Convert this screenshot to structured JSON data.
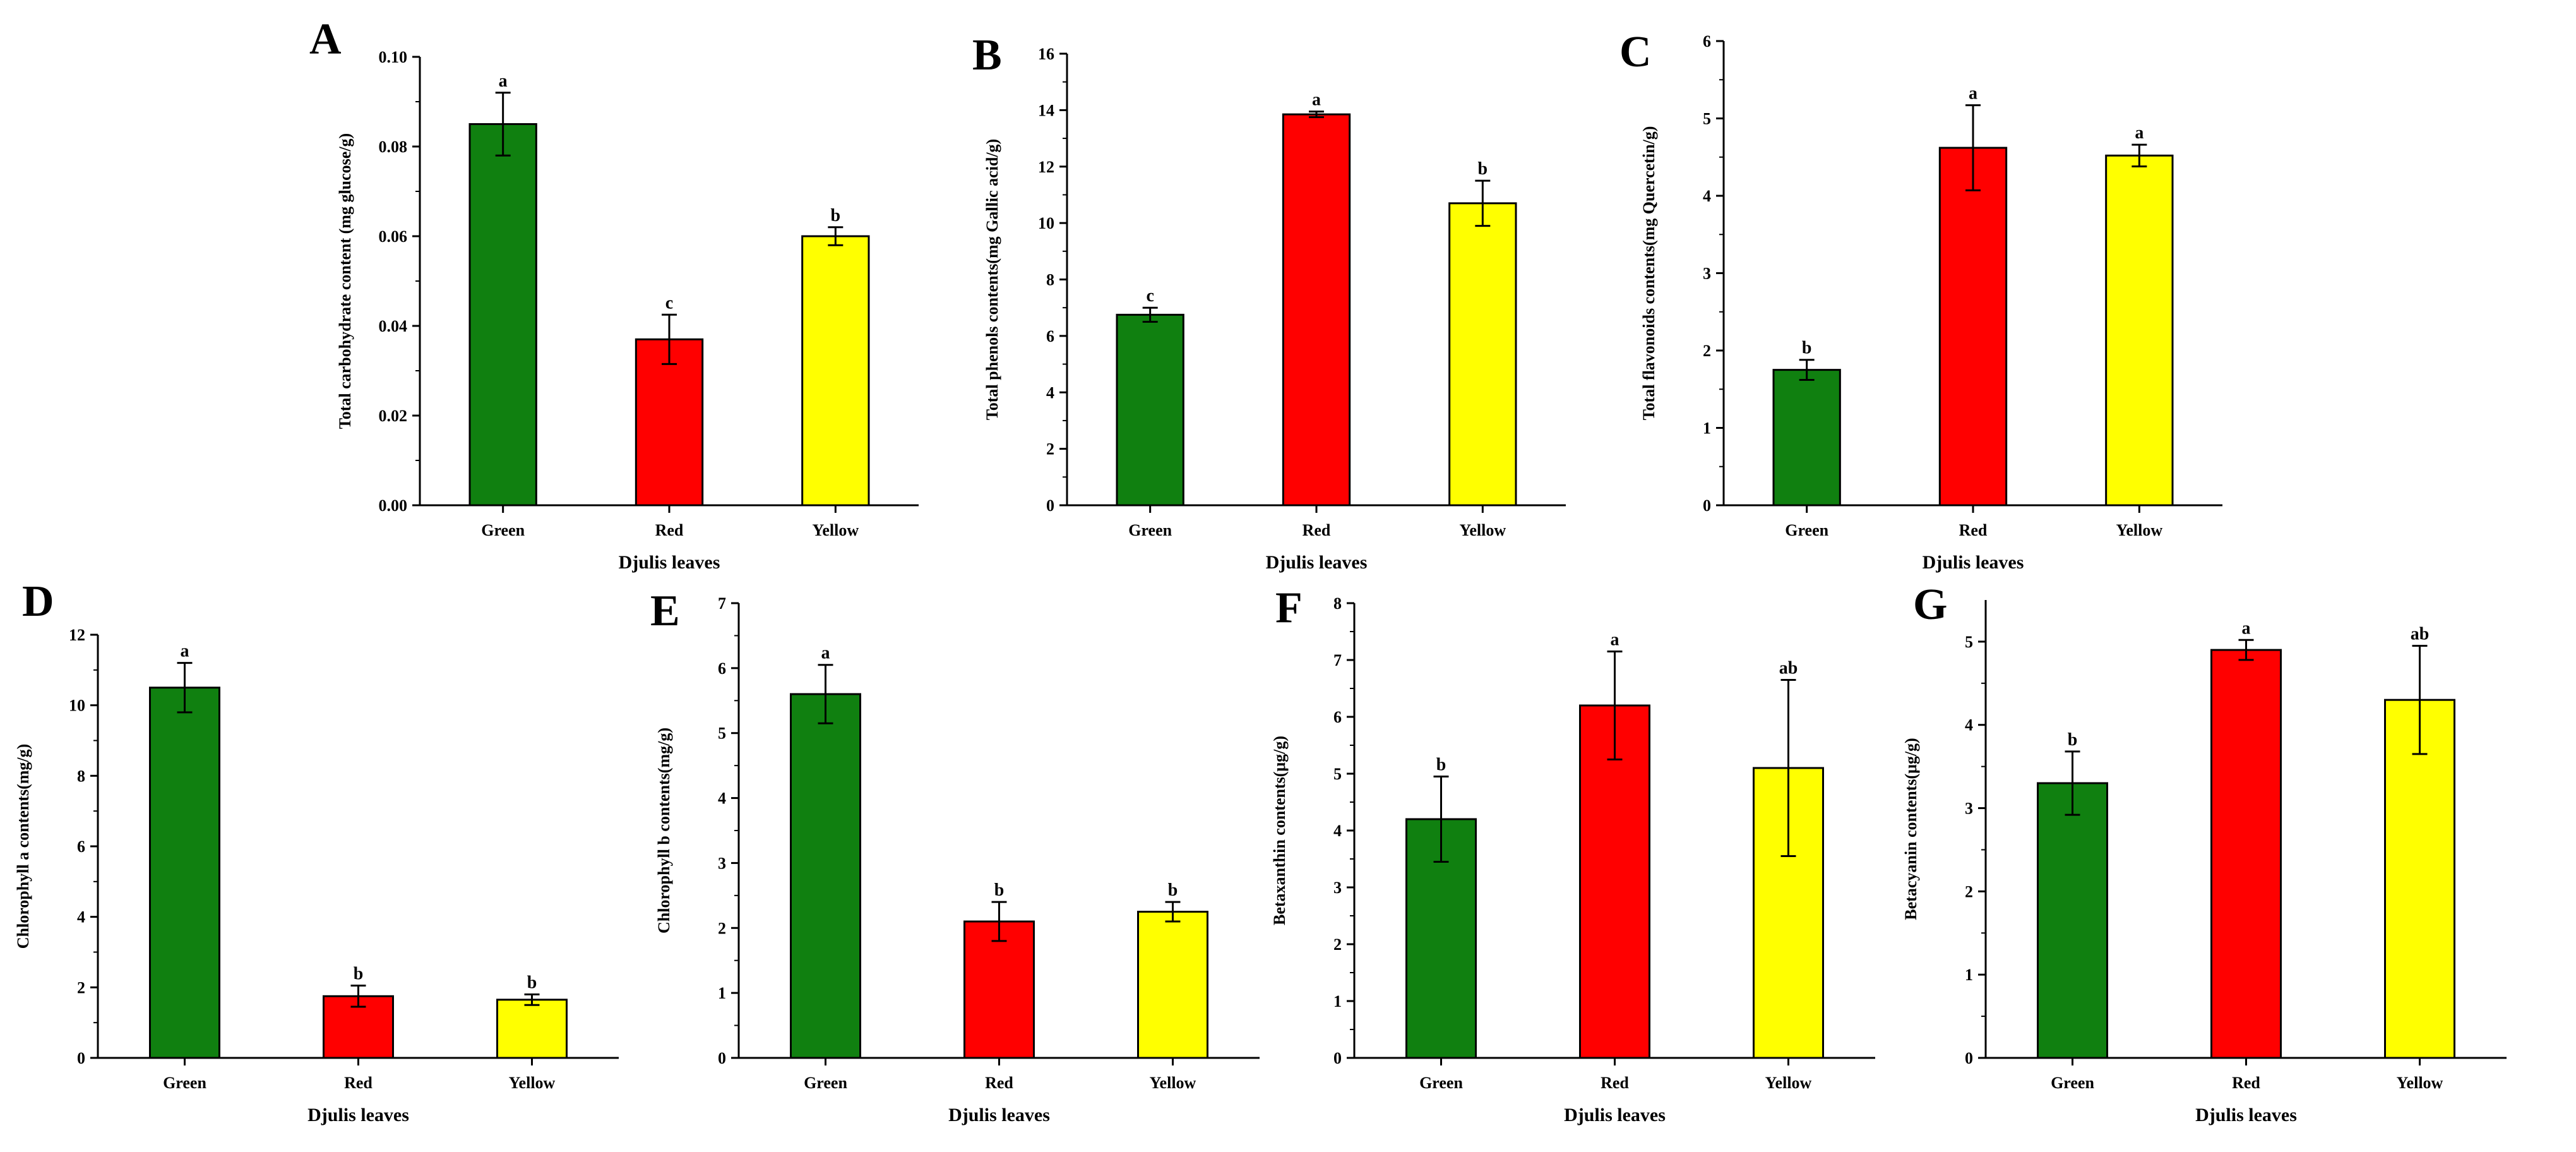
{
  "figure": {
    "x_axis_label": "Djulis leaves"
  },
  "colors": {
    "Green": "#108010",
    "Red": "#ff0000",
    "Yellow": "#ffff00",
    "axis": "#000000"
  },
  "chart_data": [
    {
      "panel": "A",
      "type": "bar",
      "categories": [
        "Green",
        "Red",
        "Yellow"
      ],
      "values": [
        0.085,
        0.037,
        0.06
      ],
      "errors": [
        0.007,
        0.0055,
        0.002
      ],
      "letters": [
        "a",
        "c",
        "b"
      ],
      "xlabel": "Djulis leaves",
      "ylabel": "Total carbohydrate content (mg glucose/g)",
      "ylim": [
        0,
        0.1
      ],
      "yticks": [
        "0.00",
        "0.02",
        "0.04",
        "0.06",
        "0.08",
        "0.10"
      ]
    },
    {
      "panel": "B",
      "type": "bar",
      "categories": [
        "Green",
        "Red",
        "Yellow"
      ],
      "values": [
        6.75,
        13.85,
        10.7
      ],
      "errors": [
        0.25,
        0.1,
        0.8
      ],
      "letters": [
        "c",
        "a",
        "b"
      ],
      "xlabel": "Djulis leaves",
      "ylabel": "Total phenols contents(mg Gallic acid/g)",
      "ylim": [
        0,
        16
      ],
      "yticks": [
        "0",
        "2",
        "4",
        "6",
        "8",
        "10",
        "12",
        "14",
        "16"
      ]
    },
    {
      "panel": "C",
      "type": "bar",
      "categories": [
        "Green",
        "Red",
        "Yellow"
      ],
      "values": [
        1.75,
        4.62,
        4.52
      ],
      "errors": [
        0.13,
        0.55,
        0.14
      ],
      "letters": [
        "b",
        "a",
        "a"
      ],
      "xlabel": "Djulis leaves",
      "ylabel": "Total flavonoids contents(mg Quercetin/g)",
      "ylim": [
        0,
        6
      ],
      "yticks": [
        "0",
        "1",
        "2",
        "3",
        "4",
        "5",
        "6"
      ]
    },
    {
      "panel": "D",
      "type": "bar",
      "categories": [
        "Green",
        "Red",
        "Yellow"
      ],
      "values": [
        10.5,
        1.75,
        1.65
      ],
      "errors": [
        0.7,
        0.3,
        0.15
      ],
      "letters": [
        "a",
        "b",
        "b"
      ],
      "xlabel": "Djulis leaves",
      "ylabel": "Chlorophyll a contents(mg/g)",
      "ylim": [
        0,
        12
      ],
      "yticks": [
        "0",
        "2",
        "4",
        "6",
        "8",
        "10",
        "12"
      ]
    },
    {
      "panel": "E",
      "type": "bar",
      "categories": [
        "Green",
        "Red",
        "Yellow"
      ],
      "values": [
        5.6,
        2.1,
        2.25
      ],
      "errors": [
        0.45,
        0.3,
        0.15
      ],
      "letters": [
        "a",
        "b",
        "b"
      ],
      "xlabel": "Djulis leaves",
      "ylabel": "Chlorophyll b contents(mg/g)",
      "ylim": [
        0,
        7
      ],
      "yticks": [
        "0",
        "1",
        "2",
        "3",
        "4",
        "5",
        "6",
        "7"
      ]
    },
    {
      "panel": "F",
      "type": "bar",
      "categories": [
        "Green",
        "Red",
        "Yellow"
      ],
      "values": [
        4.2,
        6.2,
        5.1
      ],
      "errors": [
        0.75,
        0.95,
        1.55
      ],
      "letters": [
        "b",
        "a",
        "ab"
      ],
      "xlabel": "Djulis leaves",
      "ylabel": "Betaxanthin contents(μg/g)",
      "ylim": [
        0,
        8
      ],
      "yticks": [
        "0",
        "1",
        "2",
        "3",
        "4",
        "5",
        "6",
        "7",
        "8"
      ]
    },
    {
      "panel": "G",
      "type": "bar",
      "categories": [
        "Green",
        "Red",
        "Yellow"
      ],
      "values": [
        3.3,
        4.9,
        4.3
      ],
      "errors": [
        0.38,
        0.12,
        0.65
      ],
      "letters": [
        "b",
        "a",
        "ab"
      ],
      "xlabel": "Djulis leaves",
      "ylabel": "Betacyanin contents(μg/g)",
      "ylim": [
        0,
        5.5
      ],
      "yticks": [
        "0",
        "1",
        "2",
        "3",
        "4",
        "5"
      ]
    }
  ]
}
